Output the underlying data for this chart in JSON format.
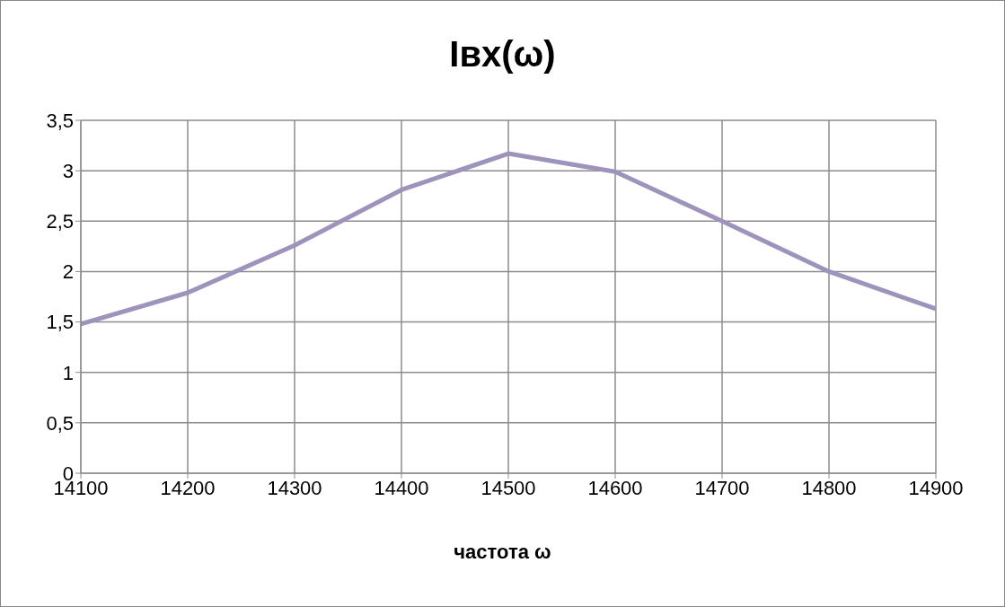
{
  "chart_data": {
    "type": "line",
    "title": "Iвх(ω)",
    "xlabel": "частота ω",
    "x": [
      14100,
      14200,
      14300,
      14400,
      14500,
      14600,
      14700,
      14800,
      14900
    ],
    "series": [
      {
        "color": "#9e93bb",
        "values": [
          1.48,
          1.79,
          2.26,
          2.81,
          3.17,
          2.99,
          2.5,
          2.0,
          1.63
        ]
      }
    ],
    "xlim": [
      14100,
      14900
    ],
    "xticks": [
      14100,
      14200,
      14300,
      14400,
      14500,
      14600,
      14700,
      14800,
      14900
    ],
    "ylim": [
      0,
      3.5
    ],
    "yticks": [
      {
        "value": 0,
        "label": "0"
      },
      {
        "value": 0.5,
        "label": "0,5"
      },
      {
        "value": 1,
        "label": "1"
      },
      {
        "value": 1.5,
        "label": "1,5"
      },
      {
        "value": 2,
        "label": "2"
      },
      {
        "value": 2.5,
        "label": "2,5"
      },
      {
        "value": 3,
        "label": "3"
      },
      {
        "value": 3.5,
        "label": "3,5"
      }
    ],
    "grid": true,
    "legend": false,
    "marker": "none",
    "line_style": "solid"
  }
}
